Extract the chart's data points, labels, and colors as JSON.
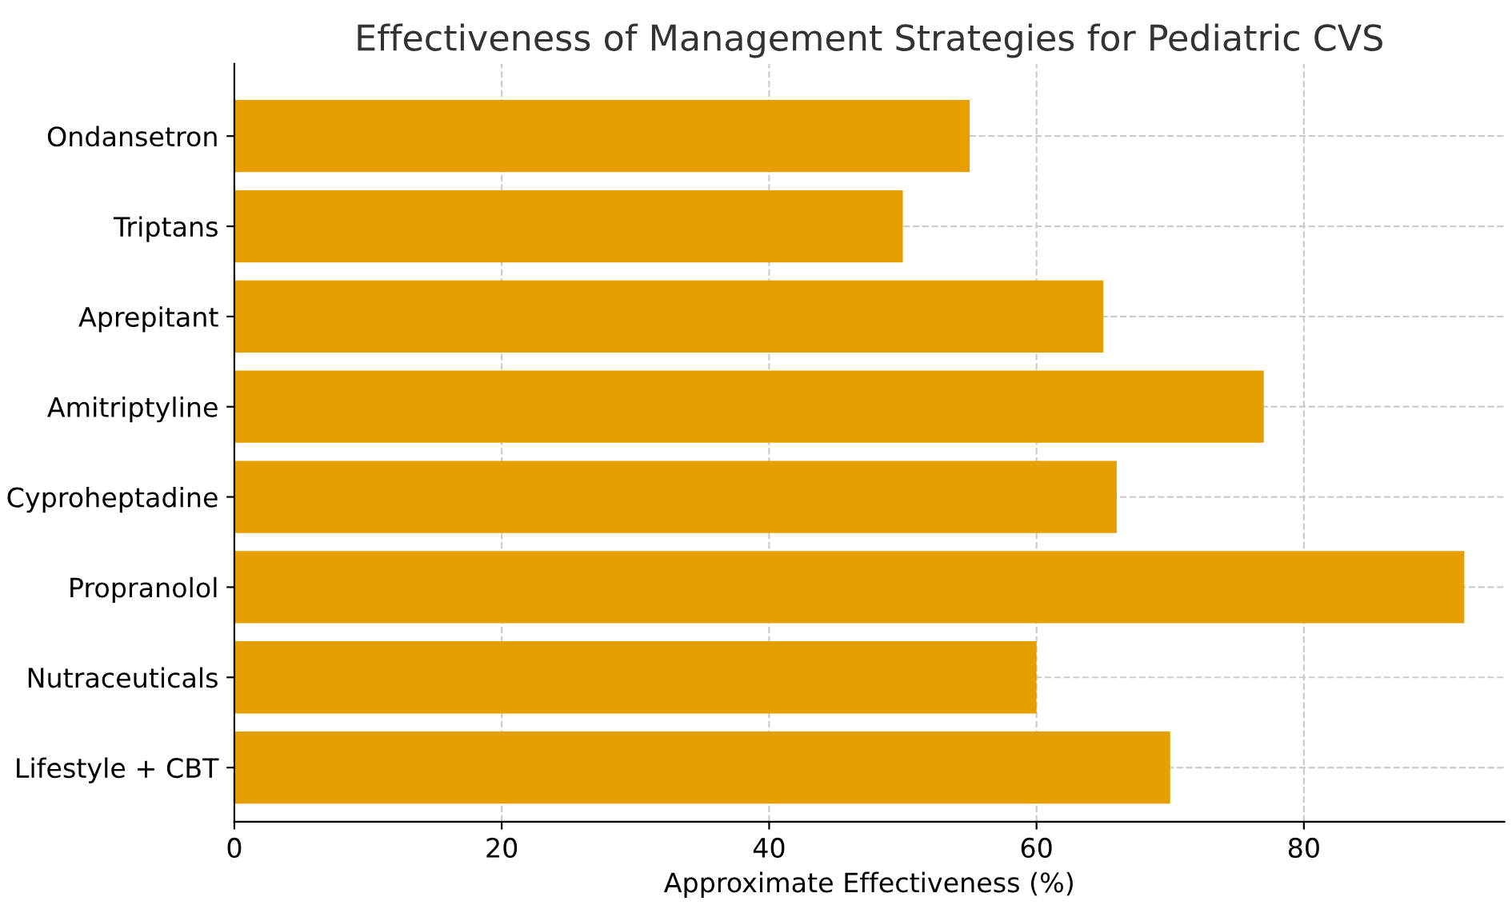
{
  "chart_data": {
    "type": "bar",
    "orientation": "horizontal",
    "title": "Effectiveness of Management Strategies for Pediatric CVS",
    "xlabel": "Approximate Effectiveness (%)",
    "categories": [
      "Ondansetron",
      "Triptans",
      "Aprepitant",
      "Amitriptyline",
      "Cyproheptadine",
      "Propranolol",
      "Nutraceuticals",
      "Lifestyle + CBT"
    ],
    "values": [
      55,
      50,
      65,
      77,
      66,
      92,
      60,
      70
    ],
    "color": "#e5a000",
    "xlim": [
      0,
      95
    ],
    "xticks": [
      0,
      20,
      40,
      60,
      80
    ],
    "grid": true
  }
}
